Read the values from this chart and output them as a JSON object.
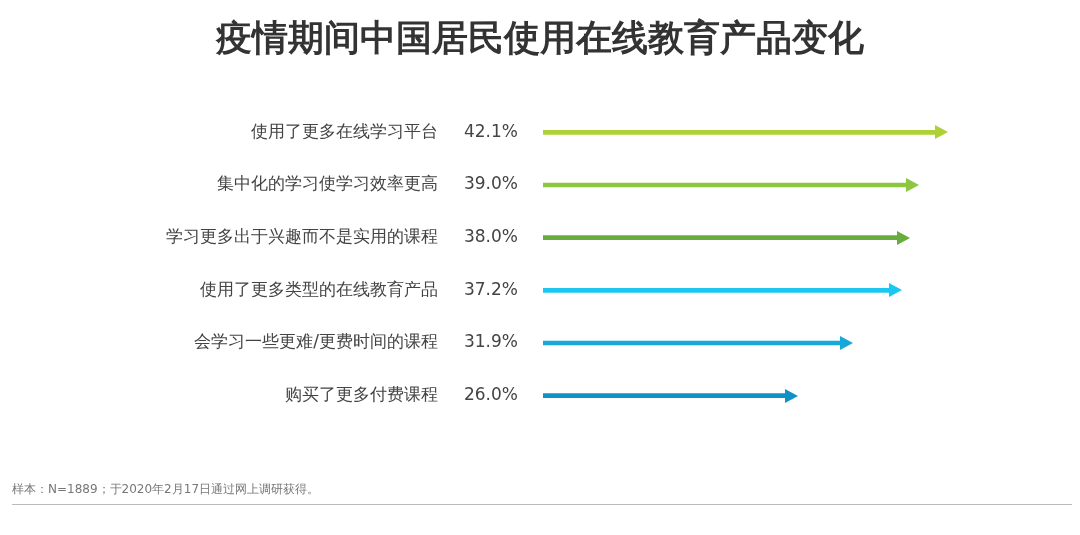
{
  "chart_data": {
    "type": "bar",
    "orientation": "horizontal",
    "title": "疫情期间中国居民使用在线教育产品变化",
    "categories": [
      "使用了更多在线学习平台",
      "集中化的学习使学习效率更高",
      "学习更多出于兴趣而不是实用的课程",
      "使用了更多类型的在线教育产品",
      "会学习一些更难/更费时间的课程",
      "购买了更多付费课程"
    ],
    "values": [
      42.1,
      39.0,
      38.0,
      37.2,
      31.9,
      26.0
    ],
    "value_labels": [
      "42.1%",
      "39.0%",
      "38.0%",
      "37.2%",
      "31.9%",
      "26.0%"
    ],
    "colors": [
      "#add136",
      "#8dc63f",
      "#67ad3b",
      "#1cc7ef",
      "#17a7d9",
      "#0f93c6"
    ],
    "legend": false,
    "annotations": [
      "样本：N=1889；于2020年2月17日通过网上调研获得。"
    ]
  }
}
